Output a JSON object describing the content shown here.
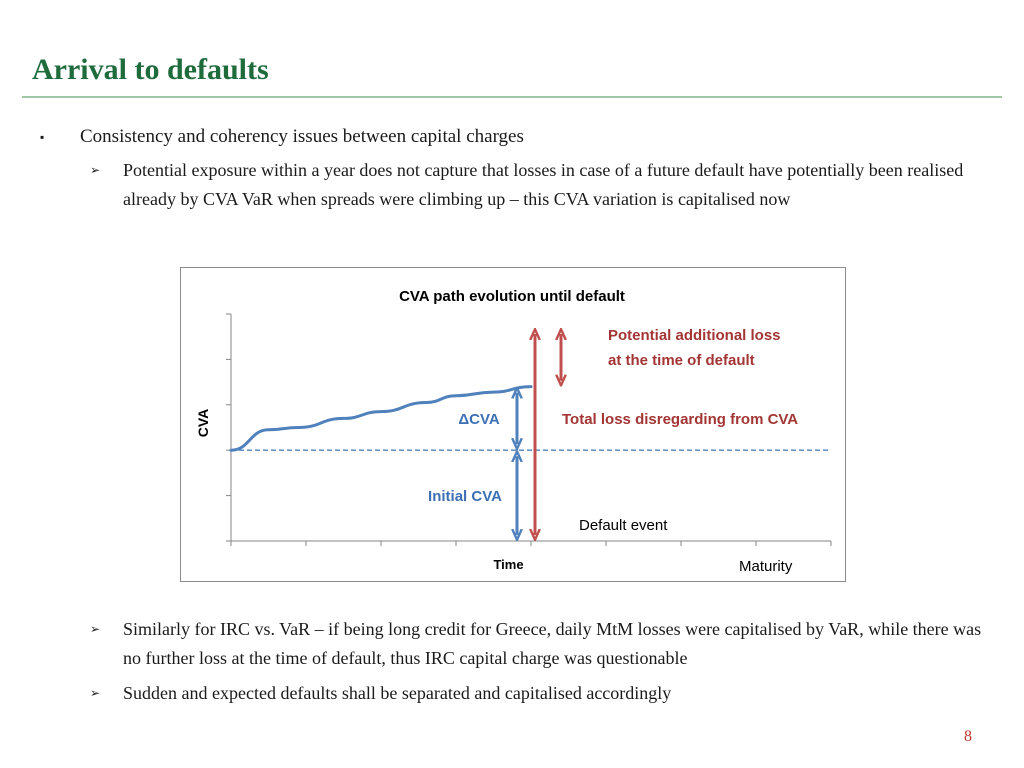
{
  "slide": {
    "title": "Arrival to defaults",
    "page_number": "8"
  },
  "bullets": {
    "level1": "Consistency and coherency issues between capital charges",
    "level1_marker": "▪",
    "sub_marker": "➢",
    "sub1": "Potential exposure within a year does not capture that losses in case of a future default have potentially been realised already by CVA VaR when spreads were climbing up – this CVA variation is capitalised now",
    "sub2": "Similarly for IRC vs. VaR – if being long credit for Greece, daily MtM losses were capitalised by VaR, while there was no further loss at the time of default, thus IRC capital charge was questionable",
    "sub3": "Sudden and expected defaults shall be separated and capitalised accordingly"
  },
  "chart_data": {
    "type": "line",
    "title": "CVA path evolution until default",
    "xlabel": "Time",
    "ylabel": "CVA",
    "xlim": [
      0,
      8
    ],
    "ylim": [
      0,
      5
    ],
    "grid": false,
    "series": [
      {
        "name": "",
        "color": "#4f81bd",
        "x": [
          0,
          0.5,
          0.9,
          1.5,
          2.0,
          2.6,
          3.0,
          3.5,
          4.0
        ],
        "y": [
          2.0,
          2.45,
          2.5,
          2.7,
          2.85,
          3.05,
          3.2,
          3.28,
          3.4
        ]
      }
    ],
    "reference_line": {
      "y": 2.0,
      "style": "dashed",
      "color": "#4f81bd"
    },
    "annotations": {
      "delta_cva": "ΔCVA",
      "initial_cva": "Initial CVA",
      "total_loss": "Total loss disregarding from CVA",
      "potential_loss_line1": "Potential additional loss",
      "potential_loss_line2": "at the time of default",
      "default_event": "Default event",
      "maturity": "Maturity"
    },
    "colors": {
      "blue": "#4f81bd",
      "red": "#c0504d",
      "blue_text": "#3d6fb5",
      "red_text": "#a33634"
    }
  }
}
